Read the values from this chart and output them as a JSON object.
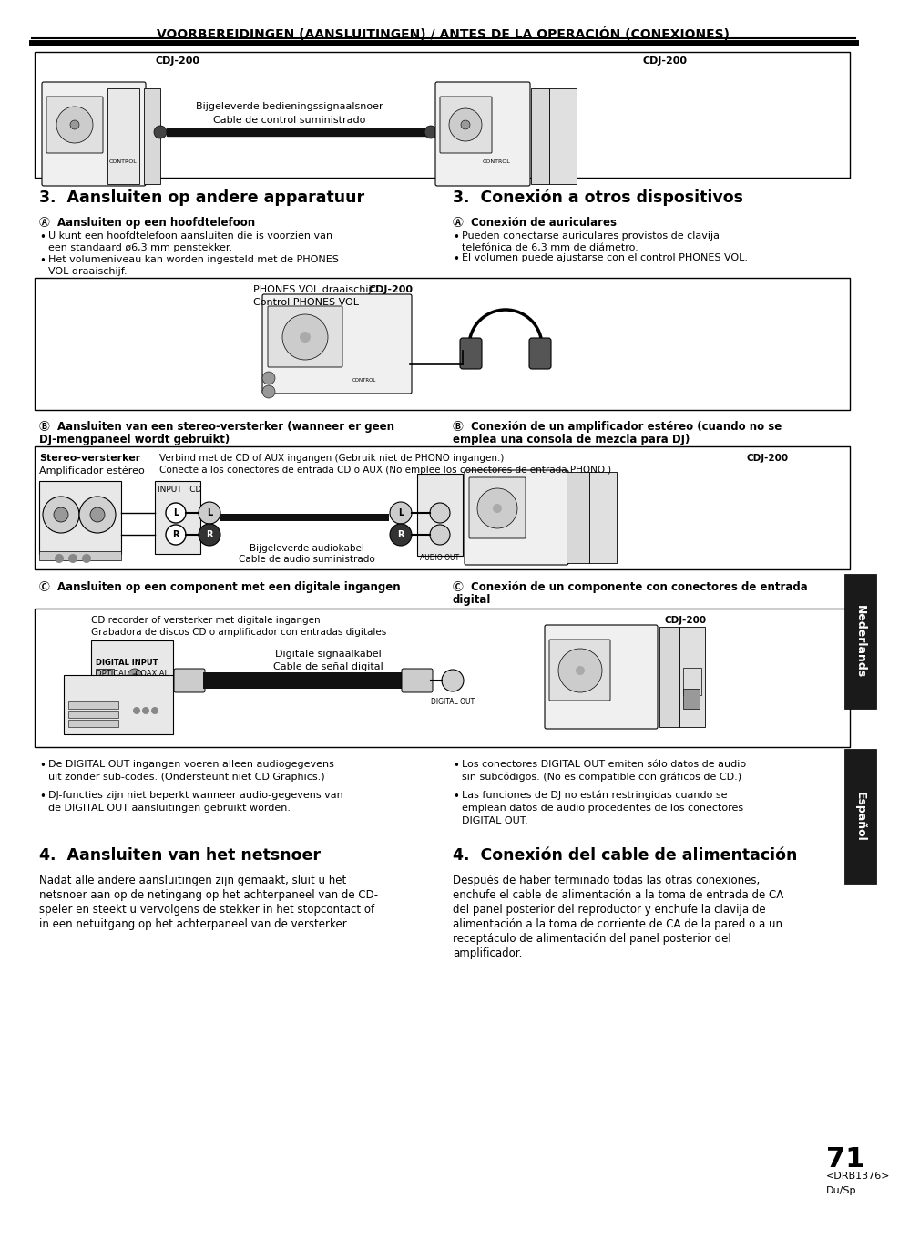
{
  "page_bg": "#ffffff",
  "header_text": "VOORBEREIDINGEN (AANSLUITINGEN) / ANTES DE LA OPERACIÓN (CONEXIONES)",
  "page_number": "71",
  "footer_text1": "<DRB1376>",
  "footer_text2": "Du/Sp",
  "sidebar_right_top": "Nederlands",
  "sidebar_right_bottom": "Español",
  "section3_left_title": "3.  Aansluiten op andere apparatuur",
  "section3_right_title": "3.  Conexión a otros dispositivos",
  "sectionA_left_title": "Ⓐ  Aansluiten op een hoofdtelefoon",
  "sectionA_left_b1": "U kunt een hoofdtelefoon aansluiten die is voorzien van\neen standaard ø6,3 mm penstekker.",
  "sectionA_left_b2": "Het volumeniveau kan worden ingesteld met de PHONES\nVOL draaischijf.",
  "sectionA_right_title": "Ⓐ  Conexión de auriculares",
  "sectionA_right_b1": "Pueden conectarse auriculares provistos de clavija\ntelefónica de 6,3 mm de diámetro.",
  "sectionA_right_b2": "El volumen puede ajustarse con el control PHONES VOL.",
  "phones_vol_label1": "PHONES VOL draaischijf",
  "phones_vol_label2": "Control PHONES VOL",
  "phones_cdj_label": "CDJ-200",
  "sectionB_left_title_1": "Ⓑ  Aansluiten van een stereo-versterker (wanneer er geen",
  "sectionB_left_title_2": "DJ-mengpaneel wordt gebruikt)",
  "sectionB_right_title_1": "Ⓑ  Conexión de un amplificador estéreo (cuando no se",
  "sectionB_right_title_2": "emplea una consola de mezcla para DJ)",
  "sB_left1": "Stereo-versterker",
  "sB_left2": "Amplificador estéreo",
  "sB_mid1": "Verbind met de CD of AUX ingangen (Gebruik niet de PHONO ingangen.)",
  "sB_mid2": "Conecte a los conectores de entrada CD o AUX (No emplee los conectores de entrada PHONO.)",
  "sB_right_label": "CDJ-200",
  "sB_cable1": "Bijgeleverde audiokabel",
  "sB_cable2": "Cable de audio suministrado",
  "sB_audio_out": "AUDIO OUT",
  "sectionC_left_title": "Ⓒ  Aansluiten op een component met een digitale ingangen",
  "sectionC_right_title_1": "Ⓒ  Conexión de un componente con conectores de entrada",
  "sectionC_right_title_2": "digital",
  "sC_left1": "CD recorder of versterker met digitale ingangen",
  "sC_left2": "Grabadora de discos CD o amplificador con entradas digitales",
  "sC_digital_input1": "DIGITAL INPUT",
  "sC_digital_input2": "OPTICAL   COAXIAL",
  "sC_cable1": "Digitale signaalkabel",
  "sC_cable2": "Cable de señal digital",
  "sC_right_label": "CDJ-200",
  "sC_digital_out": "DIGITAL OUT",
  "bul_left_1a": "De DIGITAL OUT ingangen voeren alleen audiogegevens",
  "bul_left_1b": "uit zonder sub-codes. (Ondersteunt niet CD Graphics.)",
  "bul_left_2a": "DJ-functies zijn niet beperkt wanneer audio-gegevens van",
  "bul_left_2b": "de DIGITAL OUT aansluitingen gebruikt worden.",
  "bul_right_1a": "Los conectores DIGITAL OUT emiten sólo datos de audio",
  "bul_right_1b": "sin subcódigos. (No es compatible con gráficos de CD.)",
  "bul_right_2a": "Las funciones de DJ no están restringidas cuando se",
  "bul_right_2b": "emplean datos de audio procedentes de los conectores",
  "bul_right_2c": "DIGITAL OUT.",
  "sec4_left_title": "4.  Aansluiten van het netsnoer",
  "sec4_left_1": "Nadat alle andere aansluitingen zijn gemaakt, sluit u het",
  "sec4_left_2": "netsnoer aan op de netingang op het achterpaneel van de CD-",
  "sec4_left_3": "speler en steekt u vervolgens de stekker in het stopcontact of",
  "sec4_left_4": "in een netuitgang op het achterpaneel van de versterker.",
  "sec4_right_title": "4.  Conexión del cable de alimentación",
  "sec4_right_1": "Después de haber terminado todas las otras conexiones,",
  "sec4_right_2": "enchufe el cable de alimentación a la toma de entrada de CA",
  "sec4_right_3": "del panel posterior del reproductor y enchufe la clavija de",
  "sec4_right_4": "alimentación a la toma de corriente de CA de la pared o a un",
  "sec4_right_5": "receptáculo de alimentación del panel posterior del",
  "sec4_right_6": "amplificador.",
  "top_cdj_left": "CDJ-200",
  "top_cdj_right": "CDJ-200",
  "top_cable1": "Bijgeleverde bedieningssignaalsnoer",
  "top_cable2": "Cable de control suministrado"
}
